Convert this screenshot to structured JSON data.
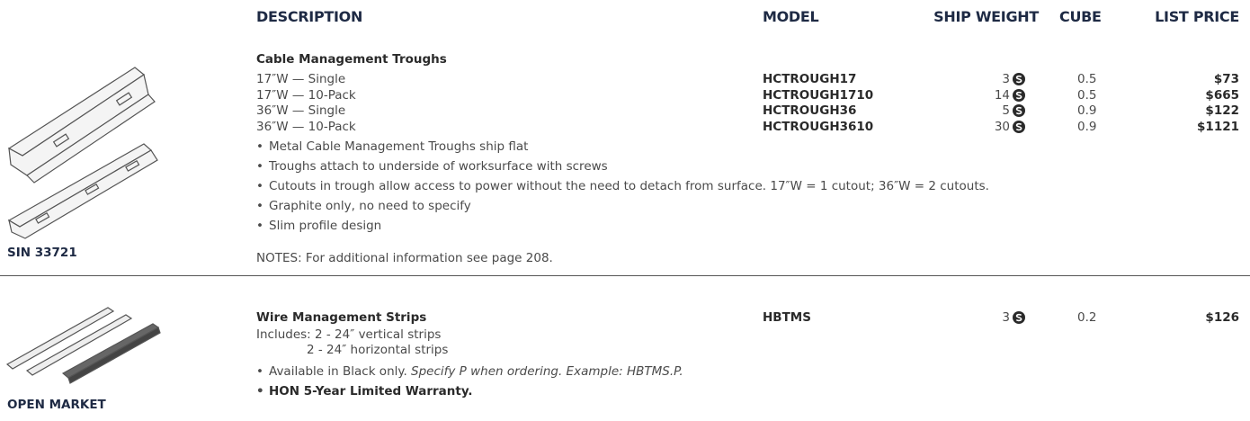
{
  "header": {
    "description": "DESCRIPTION",
    "model": "MODEL",
    "ship_weight": "SHIP WEIGHT",
    "cube": "CUBE",
    "list_price": "LIST PRICE"
  },
  "sections": [
    {
      "sin": "SIN 33721",
      "title": "Cable Management Troughs",
      "rows": [
        {
          "description": "17″W — Single",
          "model": "HCTROUGH17",
          "ship_weight": 3,
          "cube": 0.5,
          "list_price": "$73"
        },
        {
          "description": "17″W — 10-Pack",
          "model": "HCTROUGH1710",
          "ship_weight": 14,
          "cube": 0.5,
          "list_price": "$665"
        },
        {
          "description": "36″W — Single",
          "model": "HCTROUGH36",
          "ship_weight": 5,
          "cube": 0.9,
          "list_price": "$122"
        },
        {
          "description": "36″W — 10-Pack",
          "model": "HCTROUGH3610",
          "ship_weight": 30,
          "cube": 0.9,
          "list_price": "$1121"
        }
      ],
      "bullets": [
        "Metal Cable Management Troughs ship flat",
        "Troughs attach to underside of worksurface with screws",
        "Cutouts in trough allow access to power without the need to detach from surface. 17″W = 1 cutout; 36″W = 2 cutouts.",
        "Graphite only, no need to specify",
        "Slim profile design"
      ],
      "notes": "NOTES: For additional information see page 208."
    },
    {
      "sin": "OPEN MARKET",
      "title": "Wire Management Strips",
      "model": "HBTMS",
      "ship_weight": 3,
      "cube": 0.2,
      "list_price": "$126",
      "includes": [
        "Includes: 2 - 24″ vertical strips",
        "2 - 24″ horizontal strips"
      ],
      "bullet_plain": "Available in Black only.",
      "bullet_italic": "Specify P when ordering. Example: HBTMS.P.",
      "warranty": "HON 5-Year Limited Warranty."
    }
  ]
}
